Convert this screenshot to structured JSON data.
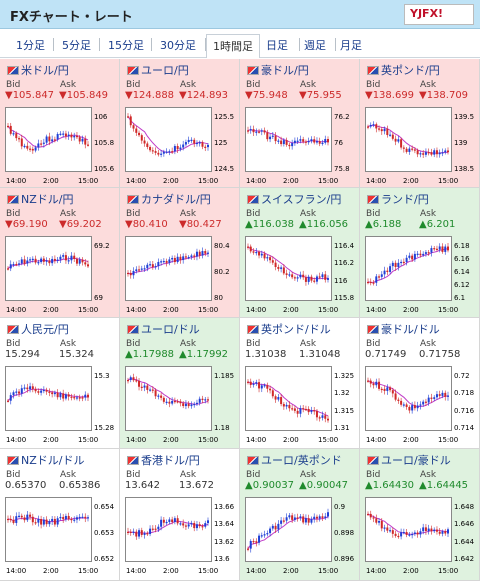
{
  "header": {
    "title": "FXチャート・レート",
    "logo_text": "YJFX!"
  },
  "tabs": [
    "1分足",
    "5分足",
    "15分足",
    "30分足",
    "1時間足",
    "日足",
    "週足",
    "月足"
  ],
  "active_tab": 4,
  "colors": {
    "down_bg": "#fcdcdc",
    "up_bg": "#dff2df",
    "neutral_bg": "#ffffff",
    "down": "#cc2b2b",
    "up": "#1f8a2c",
    "flat": "#333333"
  },
  "labels": {
    "bid": "Bid",
    "ask": "Ask"
  },
  "pairs": [
    {
      "title": "米ドル/円",
      "dir": "down",
      "bid": "▼105.847",
      "ask": "▼105.849",
      "yticks": [
        "106",
        "105.8",
        "105.6"
      ],
      "xticks": [
        "14:00",
        "2:00",
        "15:00"
      ]
    },
    {
      "title": "ユーロ/円",
      "dir": "down",
      "bid": "▼124.888",
      "ask": "▼124.893",
      "yticks": [
        "125.5",
        "125",
        "124.5"
      ],
      "xticks": [
        "14:00",
        "2:00",
        "15:00"
      ]
    },
    {
      "title": "豪ドル/円",
      "dir": "down",
      "bid": "▼75.948",
      "ask": "▼75.955",
      "yticks": [
        "76.2",
        "76",
        "75.8"
      ],
      "xticks": [
        "14:00",
        "2:00",
        "15:00"
      ]
    },
    {
      "title": "英ポンド/円",
      "dir": "down",
      "bid": "▼138.699",
      "ask": "▼138.709",
      "yticks": [
        "139.5",
        "139",
        "138.5"
      ],
      "xticks": [
        "14:00",
        "2:00",
        "15:00"
      ]
    },
    {
      "title": "NZドル/円",
      "dir": "down",
      "bid": "▼69.190",
      "ask": "▼69.202",
      "yticks": [
        "69.2",
        "69"
      ],
      "xticks": [
        "14:00",
        "2:00",
        "15:00"
      ]
    },
    {
      "title": "カナダドル/円",
      "dir": "down",
      "bid": "▼80.410",
      "ask": "▼80.427",
      "yticks": [
        "80.4",
        "80.2",
        "80"
      ],
      "xticks": [
        "14:00",
        "2:00",
        "15:00"
      ]
    },
    {
      "title": "スイスフラン/円",
      "dir": "up",
      "bid": "▲116.038",
      "ask": "▲116.056",
      "yticks": [
        "116.4",
        "116.2",
        "116",
        "115.8"
      ],
      "xticks": [
        "14:00",
        "2:00",
        "15:00"
      ]
    },
    {
      "title": "ランド/円",
      "dir": "up",
      "bid": "▲6.188",
      "ask": "▲6.201",
      "yticks": [
        "6.18",
        "6.16",
        "6.14",
        "6.12",
        "6.1"
      ],
      "xticks": [
        "14:00",
        "2:00",
        "15:00"
      ]
    },
    {
      "title": "人民元/円",
      "dir": "flat",
      "bid": "15.294",
      "ask": "15.324",
      "yticks": [
        "15.3",
        "15.28"
      ],
      "xticks": [
        "14:00",
        "2:00",
        "15:00"
      ]
    },
    {
      "title": "ユーロ/ドル",
      "dir": "up",
      "bid": "▲1.17988",
      "ask": "▲1.17992",
      "yticks": [
        "1.185",
        "1.18"
      ],
      "xticks": [
        "14:00",
        "2:00",
        "15:00"
      ]
    },
    {
      "title": "英ポンド/ドル",
      "dir": "flat",
      "bid": "1.31038",
      "ask": "1.31048",
      "yticks": [
        "1.325",
        "1.32",
        "1.315",
        "1.31"
      ],
      "xticks": [
        "14:00",
        "2:00",
        "15:00"
      ]
    },
    {
      "title": "豪ドル/ドル",
      "dir": "flat",
      "bid": "0.71749",
      "ask": "0.71758",
      "yticks": [
        "0.72",
        "0.718",
        "0.716",
        "0.714"
      ],
      "xticks": [
        "14:00",
        "2:00",
        "15:00"
      ]
    },
    {
      "title": "NZドル/ドル",
      "dir": "flat",
      "bid": "0.65370",
      "ask": "0.65386",
      "yticks": [
        "0.654",
        "0.653",
        "0.652"
      ],
      "xticks": [
        "14:00",
        "2:00",
        "15:00"
      ]
    },
    {
      "title": "香港ドル/円",
      "dir": "flat",
      "bid": "13.642",
      "ask": "13.672",
      "yticks": [
        "13.66",
        "13.64",
        "13.62",
        "13.6"
      ],
      "xticks": [
        "14:00",
        "2:00",
        "15:00"
      ]
    },
    {
      "title": "ユーロ/英ポンド",
      "dir": "up",
      "bid": "▲0.90037",
      "ask": "▲0.90047",
      "yticks": [
        "0.9",
        "0.898",
        "0.896"
      ],
      "xticks": [
        "14:00",
        "2:00",
        "15:00"
      ]
    },
    {
      "title": "ユーロ/豪ドル",
      "dir": "up",
      "bid": "▲1.64430",
      "ask": "▲1.64445",
      "yticks": [
        "1.648",
        "1.646",
        "1.644",
        "1.642"
      ],
      "xticks": [
        "14:00",
        "2:00",
        "15:00"
      ]
    }
  ]
}
